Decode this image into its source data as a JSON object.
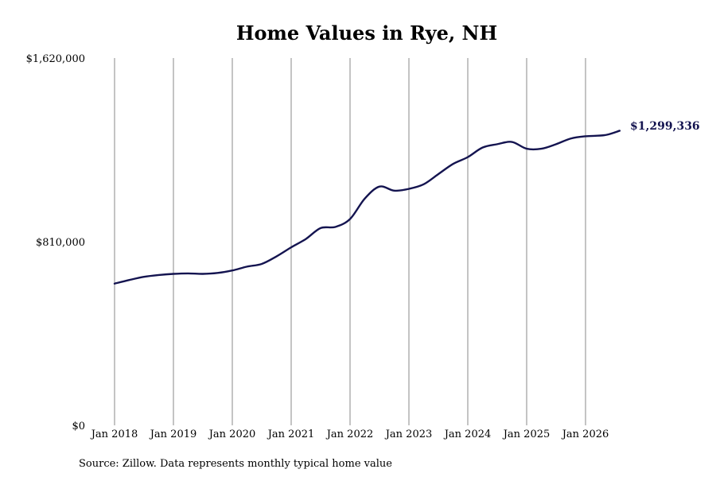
{
  "chart_data": {
    "type": "line",
    "title": "Home Values in Rye, NH",
    "source": "Source: Zillow. Data represents monthly typical home value",
    "ylim": [
      0,
      1620000
    ],
    "yticks": [
      {
        "value": 0,
        "label": "$0"
      },
      {
        "value": 810000,
        "label": "$810,000"
      },
      {
        "value": 1620000,
        "label": "$1,620,000"
      }
    ],
    "xticks": [
      {
        "value": 2018.0,
        "label": "Jan 2018"
      },
      {
        "value": 2019.0,
        "label": "Jan 2019"
      },
      {
        "value": 2020.0,
        "label": "Jan 2020"
      },
      {
        "value": 2021.0,
        "label": "Jan 2021"
      },
      {
        "value": 2022.0,
        "label": "Jan 2022"
      },
      {
        "value": 2023.0,
        "label": "Jan 2023"
      },
      {
        "value": 2024.0,
        "label": "Jan 2024"
      },
      {
        "value": 2025.0,
        "label": "Jan 2025"
      },
      {
        "value": 2026.0,
        "label": "Jan 2026"
      }
    ],
    "grid": "vertical",
    "series": [
      {
        "color": "#141450",
        "points": [
          [
            2018.0,
            625000
          ],
          [
            2018.25,
            641000
          ],
          [
            2018.5,
            655000
          ],
          [
            2018.75,
            663000
          ],
          [
            2019.0,
            668000
          ],
          [
            2019.25,
            670000
          ],
          [
            2019.5,
            668000
          ],
          [
            2019.75,
            672000
          ],
          [
            2020.0,
            683000
          ],
          [
            2020.25,
            700000
          ],
          [
            2020.5,
            712000
          ],
          [
            2020.75,
            745000
          ],
          [
            2021.0,
            785000
          ],
          [
            2021.25,
            822000
          ],
          [
            2021.5,
            870000
          ],
          [
            2021.75,
            875000
          ],
          [
            2022.0,
            910000
          ],
          [
            2022.25,
            1000000
          ],
          [
            2022.5,
            1053000
          ],
          [
            2022.75,
            1035000
          ],
          [
            2023.0,
            1043000
          ],
          [
            2023.25,
            1063000
          ],
          [
            2023.5,
            1108000
          ],
          [
            2023.75,
            1153000
          ],
          [
            2024.0,
            1183000
          ],
          [
            2024.25,
            1225000
          ],
          [
            2024.5,
            1240000
          ],
          [
            2024.75,
            1250000
          ],
          [
            2025.0,
            1220000
          ],
          [
            2025.25,
            1220000
          ],
          [
            2025.5,
            1240000
          ],
          [
            2025.75,
            1265000
          ],
          [
            2026.0,
            1275000
          ],
          [
            2026.33,
            1280000
          ],
          [
            2026.58,
            1299336
          ]
        ]
      }
    ],
    "end_label": "$1,299,336"
  }
}
